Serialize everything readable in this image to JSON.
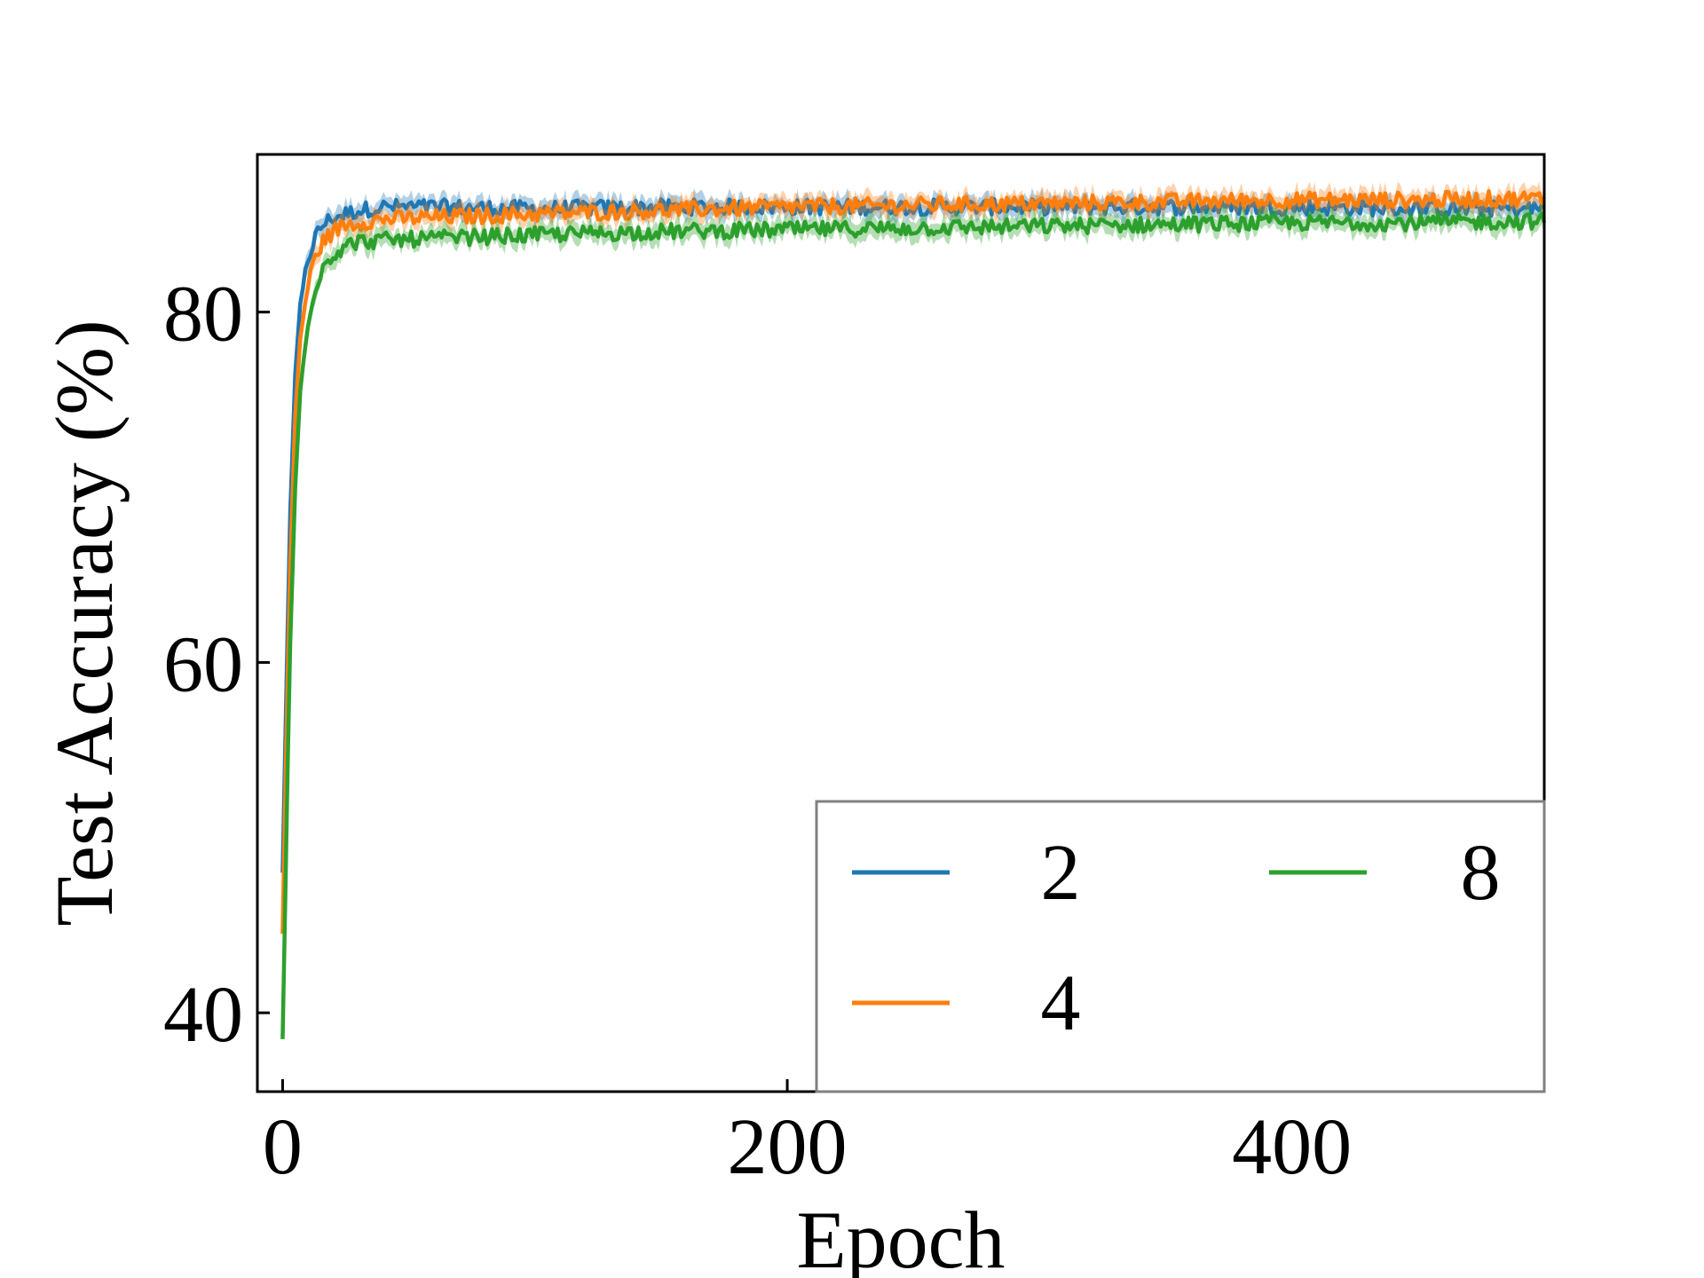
{
  "chart_data": {
    "type": "line",
    "title": "",
    "xlabel": "Epoch",
    "ylabel": "Test Accuracy (%)",
    "xlim": [
      -10,
      500
    ],
    "ylim": [
      35.5,
      89
    ],
    "xticks": [
      0,
      200,
      400
    ],
    "yticks": [
      40,
      60,
      80
    ],
    "grid": false,
    "legend": {
      "placement": "lower-right",
      "columns": 2
    },
    "series": [
      {
        "name": "2",
        "color": "#1f77b4",
        "x": [
          0,
          1,
          2,
          3,
          5,
          7,
          10,
          13,
          16,
          20,
          25,
          30,
          40,
          60,
          100,
          150,
          200,
          250,
          300,
          350,
          400,
          450,
          500
        ],
        "y": [
          48.0,
          55.0,
          62.0,
          68.5,
          76.5,
          80.5,
          83.0,
          84.3,
          85.0,
          85.4,
          85.6,
          85.8,
          86.0,
          86.0,
          85.9,
          86.0,
          86.0,
          86.0,
          86.0,
          86.0,
          86.0,
          85.9,
          85.9
        ]
      },
      {
        "name": "4",
        "color": "#ff7f0e",
        "x": [
          0,
          1,
          2,
          3,
          5,
          7,
          10,
          13,
          16,
          20,
          25,
          30,
          40,
          60,
          100,
          150,
          200,
          250,
          300,
          350,
          400,
          450,
          500
        ],
        "y": [
          44.5,
          52.0,
          59.0,
          65.5,
          74.0,
          78.5,
          81.5,
          83.2,
          84.0,
          84.6,
          85.0,
          85.1,
          85.3,
          85.4,
          85.6,
          85.8,
          86.0,
          86.1,
          86.2,
          86.3,
          86.4,
          86.4,
          86.5
        ]
      },
      {
        "name": "8",
        "color": "#2ca02c",
        "x": [
          0,
          1,
          2,
          3,
          5,
          7,
          10,
          13,
          16,
          20,
          25,
          30,
          40,
          60,
          100,
          150,
          200,
          250,
          300,
          350,
          400,
          450,
          500
        ],
        "y": [
          38.5,
          46.0,
          54.0,
          61.0,
          70.0,
          75.5,
          79.5,
          81.5,
          82.6,
          83.3,
          83.8,
          84.0,
          84.1,
          84.2,
          84.4,
          84.6,
          84.7,
          84.8,
          84.9,
          85.0,
          85.1,
          85.1,
          85.2
        ]
      }
    ]
  }
}
